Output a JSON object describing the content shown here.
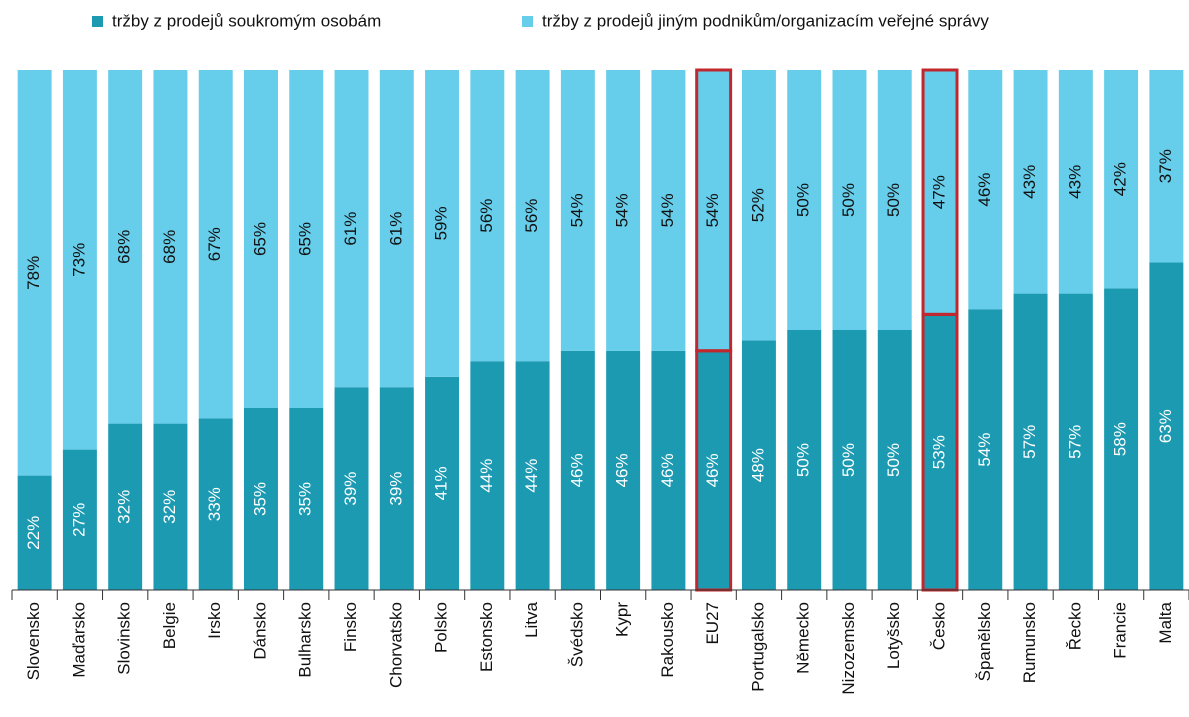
{
  "chart_data": {
    "type": "stacked_bar",
    "categories": [
      "Slovensko",
      "Maďarsko",
      "Slovinsko",
      "Belgie",
      "Irsko",
      "Dánsko",
      "Bulharsko",
      "Finsko",
      "Chorvatsko",
      "Polsko",
      "Estonsko",
      "Litva",
      "Švédsko",
      "Kypr",
      "Rakousko",
      "EU27",
      "Portugalsko",
      "Německo",
      "Nizozemsko",
      "Lotyšsko",
      "Česko",
      "Španělsko",
      "Rumunsko",
      "Řecko",
      "Francie",
      "Malta"
    ],
    "series": [
      {
        "name": "tržby z prodejů soukromým osobám",
        "color": "#1b9ab2",
        "values": [
          22,
          27,
          32,
          32,
          33,
          35,
          35,
          39,
          39,
          41,
          44,
          44,
          46,
          46,
          46,
          46,
          48,
          50,
          50,
          50,
          53,
          54,
          57,
          57,
          58,
          63
        ],
        "value_labels": [
          "22%",
          "27%",
          "32%",
          "32%",
          "33%",
          "35%",
          "35%",
          "39%",
          "39%",
          "41%",
          "44%",
          "44%",
          "46%",
          "46%",
          "46%",
          "46%",
          "48%",
          "50%",
          "50%",
          "50%",
          "53%",
          "54%",
          "57%",
          "57%",
          "58%",
          "63%"
        ]
      },
      {
        "name": "tržby z prodejů jiným podnikům/organizacím veřejné správy",
        "color": "#66cdea",
        "values": [
          78,
          73,
          68,
          68,
          67,
          65,
          65,
          61,
          61,
          59,
          56,
          56,
          54,
          54,
          54,
          54,
          52,
          50,
          50,
          50,
          47,
          46,
          43,
          43,
          42,
          37
        ],
        "value_labels": [
          "78%",
          "73%",
          "68%",
          "68%",
          "67%",
          "65%",
          "65%",
          "61%",
          "61%",
          "59%",
          "56%",
          "56%",
          "54%",
          "54%",
          "54%",
          "54%",
          "52%",
          "50%",
          "50%",
          "50%",
          "47%",
          "46%",
          "43%",
          "43%",
          "42%",
          "37%"
        ]
      }
    ],
    "ylim": [
      0,
      100
    ],
    "highlighted": [
      15,
      20
    ],
    "highlight_color": "#c0282d",
    "legend": "top"
  }
}
